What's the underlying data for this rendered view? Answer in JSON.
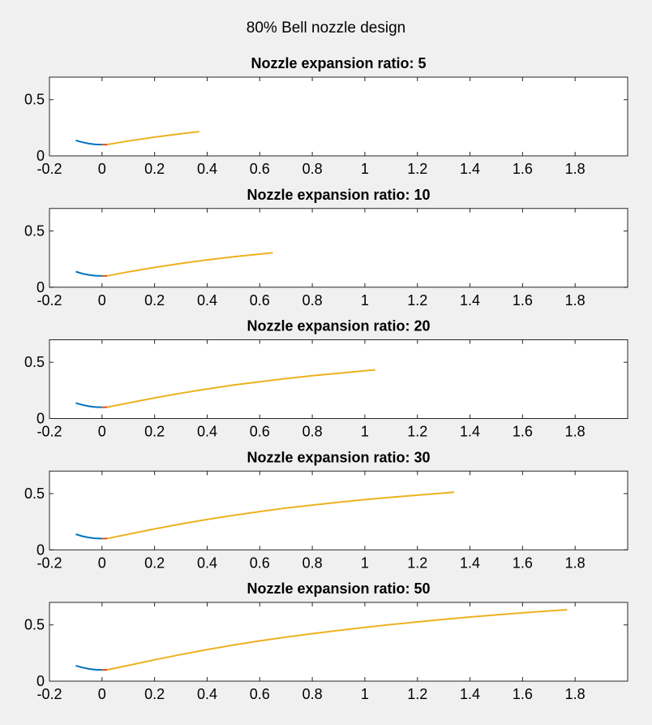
{
  "figure": {
    "suptitle": "80% Bell nozzle design",
    "background": "#f0f0f0"
  },
  "colors": {
    "entrant_arc": "#0072bd",
    "exit_arc": "#d95319",
    "bell": "#edb120",
    "axes": "#262626"
  },
  "chart_data": [
    {
      "type": "line",
      "title": "Nozzle expansion ratio: 5",
      "expansion_ratio": 5,
      "xlim": [
        -0.2,
        2.0
      ],
      "ylim": [
        0,
        0.7
      ],
      "xticks": [
        "-0.2",
        "0",
        "0.2",
        "0.4",
        "0.6",
        "0.8",
        "1",
        "1.2",
        "1.4",
        "1.6",
        "1.8"
      ],
      "yticks": [
        "0",
        "0.5"
      ],
      "grid": false,
      "series": [
        {
          "x": [
            -0.1,
            -0.075,
            -0.05,
            -0.025,
            0.0
          ],
          "y": [
            0.138,
            0.121,
            0.109,
            0.102,
            0.1
          ]
        },
        {
          "x": [
            0.0,
            0.01,
            0.02
          ],
          "y": [
            0.1,
            0.1,
            0.101
          ]
        },
        {
          "x": [
            0.02,
            0.1,
            0.2,
            0.3,
            0.37
          ],
          "y": [
            0.101,
            0.132,
            0.167,
            0.197,
            0.216
          ]
        }
      ]
    },
    {
      "type": "line",
      "title": "Nozzle expansion ratio: 10",
      "expansion_ratio": 10,
      "xlim": [
        -0.2,
        2.0
      ],
      "ylim": [
        0,
        0.7
      ],
      "xticks": [
        "-0.2",
        "0",
        "0.2",
        "0.4",
        "0.6",
        "0.8",
        "1",
        "1.2",
        "1.4",
        "1.6",
        "1.8"
      ],
      "yticks": [
        "0",
        "0.5"
      ],
      "grid": false,
      "series": [
        {
          "x": [
            -0.1,
            -0.075,
            -0.05,
            -0.025,
            0.0
          ],
          "y": [
            0.138,
            0.121,
            0.109,
            0.102,
            0.1
          ]
        },
        {
          "x": [
            0.0,
            0.01,
            0.02
          ],
          "y": [
            0.1,
            0.1,
            0.101
          ]
        },
        {
          "x": [
            0.02,
            0.1,
            0.2,
            0.3,
            0.4,
            0.5,
            0.6,
            0.65
          ],
          "y": [
            0.101,
            0.136,
            0.176,
            0.211,
            0.243,
            0.27,
            0.294,
            0.306
          ]
        }
      ]
    },
    {
      "type": "line",
      "title": "Nozzle expansion ratio: 20",
      "expansion_ratio": 20,
      "xlim": [
        -0.2,
        2.0
      ],
      "ylim": [
        0,
        0.7
      ],
      "xticks": [
        "-0.2",
        "0",
        "0.2",
        "0.4",
        "0.6",
        "0.8",
        "1",
        "1.2",
        "1.4",
        "1.6",
        "1.8"
      ],
      "yticks": [
        "0",
        "0.5"
      ],
      "grid": false,
      "series": [
        {
          "x": [
            -0.1,
            -0.075,
            -0.05,
            -0.025,
            0.0
          ],
          "y": [
            0.138,
            0.121,
            0.109,
            0.102,
            0.1
          ]
        },
        {
          "x": [
            0.0,
            0.01,
            0.02
          ],
          "y": [
            0.1,
            0.1,
            0.101
          ]
        },
        {
          "x": [
            0.02,
            0.1,
            0.2,
            0.3,
            0.4,
            0.5,
            0.6,
            0.7,
            0.8,
            0.9,
            1.0,
            1.04
          ],
          "y": [
            0.101,
            0.138,
            0.183,
            0.225,
            0.263,
            0.297,
            0.327,
            0.355,
            0.38,
            0.403,
            0.425,
            0.433
          ]
        }
      ]
    },
    {
      "type": "line",
      "title": "Nozzle expansion ratio: 30",
      "expansion_ratio": 30,
      "xlim": [
        -0.2,
        2.0
      ],
      "ylim": [
        0,
        0.7
      ],
      "xticks": [
        "-0.2",
        "0",
        "0.2",
        "0.4",
        "0.6",
        "0.8",
        "1",
        "1.2",
        "1.4",
        "1.6",
        "1.8"
      ],
      "yticks": [
        "0",
        "0.5"
      ],
      "grid": false,
      "series": [
        {
          "x": [
            -0.1,
            -0.075,
            -0.05,
            -0.025,
            0.0
          ],
          "y": [
            0.138,
            0.121,
            0.109,
            0.102,
            0.1
          ]
        },
        {
          "x": [
            0.0,
            0.01,
            0.02
          ],
          "y": [
            0.1,
            0.1,
            0.101
          ]
        },
        {
          "x": [
            0.02,
            0.1,
            0.2,
            0.3,
            0.4,
            0.5,
            0.6,
            0.7,
            0.8,
            0.9,
            1.0,
            1.1,
            1.2,
            1.34
          ],
          "y": [
            0.101,
            0.139,
            0.186,
            0.23,
            0.27,
            0.307,
            0.34,
            0.371,
            0.398,
            0.423,
            0.446,
            0.467,
            0.486,
            0.512
          ]
        }
      ]
    },
    {
      "type": "line",
      "title": "Nozzle expansion ratio: 50",
      "expansion_ratio": 50,
      "xlim": [
        -0.2,
        2.0
      ],
      "ylim": [
        0,
        0.7
      ],
      "xticks": [
        "-0.2",
        "0",
        "0.2",
        "0.4",
        "0.6",
        "0.8",
        "1",
        "1.2",
        "1.4",
        "1.6",
        "1.8"
      ],
      "yticks": [
        "0",
        "0.5"
      ],
      "grid": false,
      "series": [
        {
          "x": [
            -0.1,
            -0.075,
            -0.05,
            -0.025,
            0.0
          ],
          "y": [
            0.138,
            0.121,
            0.109,
            0.102,
            0.1
          ]
        },
        {
          "x": [
            0.0,
            0.01,
            0.02
          ],
          "y": [
            0.1,
            0.1,
            0.101
          ]
        },
        {
          "x": [
            0.02,
            0.1,
            0.2,
            0.3,
            0.4,
            0.5,
            0.6,
            0.7,
            0.8,
            0.9,
            1.0,
            1.1,
            1.2,
            1.3,
            1.4,
            1.5,
            1.6,
            1.7,
            1.77
          ],
          "y": [
            0.101,
            0.14,
            0.19,
            0.237,
            0.281,
            0.321,
            0.358,
            0.391,
            0.422,
            0.451,
            0.478,
            0.503,
            0.527,
            0.549,
            0.57,
            0.589,
            0.607,
            0.624,
            0.635
          ]
        }
      ]
    }
  ]
}
